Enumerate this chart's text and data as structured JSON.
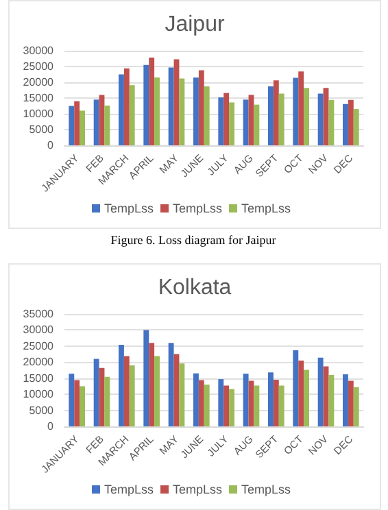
{
  "chart_data": [
    {
      "type": "bar",
      "title": "Jaipur",
      "categories": [
        "JANUARY",
        "FEB",
        "MARCH",
        "APRIL",
        "MAY",
        "JUNE",
        "JULY",
        "AUG",
        "SEPT",
        "OCT",
        "NOV",
        "DEC"
      ],
      "series": [
        {
          "name": "TempLss",
          "color": "#4472c4",
          "values": [
            12500,
            14500,
            22500,
            25500,
            24700,
            21500,
            15200,
            14500,
            18700,
            21400,
            16400,
            13100
          ]
        },
        {
          "name": "TempLss",
          "color": "#c0504d",
          "values": [
            14000,
            16000,
            24400,
            27800,
            27300,
            23800,
            16600,
            16000,
            20600,
            23400,
            18200,
            14400
          ]
        },
        {
          "name": "TempLss",
          "color": "#9bbb59",
          "values": [
            11000,
            12600,
            19100,
            21500,
            21200,
            18700,
            13600,
            12900,
            16400,
            18200,
            14400,
            11500
          ]
        }
      ],
      "ylim": [
        0,
        30000
      ],
      "yticks": [
        0,
        5000,
        10000,
        15000,
        20000,
        25000,
        30000
      ],
      "grid": "y",
      "legend": "bottom",
      "annotations": [
        "Figure 6. Loss diagram for Jaipur"
      ]
    },
    {
      "type": "bar",
      "title": "Kolkata",
      "categories": [
        "JANUARY",
        "FEB",
        "MARCH",
        "APRIL",
        "MAY",
        "JUNE",
        "JULY",
        "AUG",
        "SEPT",
        "OCT",
        "NOV",
        "DEC"
      ],
      "series": [
        {
          "name": "TempLss",
          "color": "#4472c4",
          "values": [
            16400,
            21000,
            25400,
            30000,
            26000,
            16500,
            14700,
            16400,
            16800,
            23700,
            21400,
            16200
          ]
        },
        {
          "name": "TempLss",
          "color": "#c0504d",
          "values": [
            14400,
            18200,
            21900,
            26000,
            22500,
            14400,
            12700,
            14200,
            14500,
            20500,
            18700,
            14200
          ]
        },
        {
          "name": "TempLss",
          "color": "#9bbb59",
          "values": [
            12500,
            15400,
            19000,
            21900,
            19600,
            13000,
            11600,
            12700,
            12700,
            17600,
            16000,
            12200
          ]
        }
      ],
      "ylim": [
        0,
        35000
      ],
      "yticks": [
        0,
        5000,
        10000,
        15000,
        20000,
        25000,
        30000,
        35000
      ],
      "grid": "y",
      "legend": "bottom"
    }
  ]
}
